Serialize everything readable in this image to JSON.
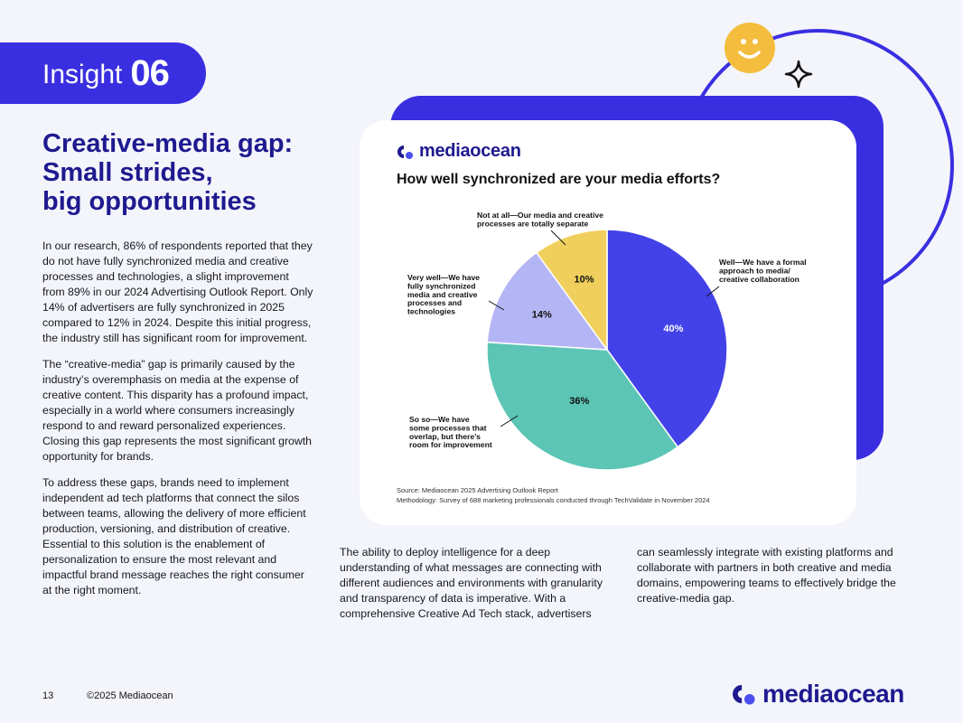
{
  "insight": {
    "label": "Insight",
    "number": "06"
  },
  "headline": [
    "Creative-media gap:",
    "Small strides,",
    "big opportunities"
  ],
  "body": {
    "col1": [
      "In our research, 86% of respondents reported that they do not have fully synchronized media and creative processes and technologies, a slight improvement from 89% in our 2024 Advertising Outlook Report. Only 14% of advertisers are fully synchronized in 2025 compared to 12% in 2024. Despite this initial progress, the industry still has significant room for improvement.",
      "The “creative-media” gap is primarily caused by the industry’s overemphasis on media at the expense of creative content. This disparity has a profound impact, especially in a world where consumers increasingly respond to and reward personalized experiences. Closing this gap represents the most significant growth opportunity for brands.",
      "To address these gaps, brands need to implement independent ad tech platforms that connect the silos between teams, allowing the delivery of more efficient production, versioning, and distribution of creative. Essential to this solution is the enablement of personalization to ensure the most relevant and impactful brand message reaches the right consumer at the right moment."
    ],
    "col2": "The ability to deploy intelligence for a deep understanding of what messages are connecting with different audiences and environments with granularity and transparency of data is imperative. With a comprehensive Creative Ad Tech stack, advertisers",
    "col3": "can seamlessly integrate with existing platforms and collaborate with partners in both creative and media domains, empowering teams to effectively bridge the creative-media gap."
  },
  "card": {
    "brand": "mediaocean",
    "source": "Source: Mediaocean 2025 Advertising Outlook Report",
    "methodology": "Methodology: Survey of 688 marketing professionals conducted through TechValidate in November 2024"
  },
  "chart_data": {
    "type": "pie",
    "title": "How well synchronized are your media efforts?",
    "slices": [
      {
        "label": "Well—We have a formal approach to media/ creative collaboration",
        "value": 40,
        "display": "40%",
        "color": "#4342e8",
        "text_color": "#ffffff"
      },
      {
        "label": "So so—We have some processes that overlap, but there’s room for improvement",
        "value": 36,
        "display": "36%",
        "color": "#5cc5b5",
        "text_color": "#111111"
      },
      {
        "label": "Very well—We have fully synchronized media and creative processes and technologies",
        "value": 14,
        "display": "14%",
        "color": "#b4b5f4",
        "text_color": "#111111"
      },
      {
        "label": "Not at all—Our media and creative processes are totally separate",
        "value": 10,
        "display": "10%",
        "color": "#f0cf5c",
        "text_color": "#111111"
      }
    ]
  },
  "footer": {
    "page": "13",
    "copyright": "©2025 Mediaocean",
    "brand": "mediaocean"
  },
  "colors": {
    "brand": "#3a2fe0",
    "headline": "#1f1a8f",
    "smiley": "#f5bd3d"
  }
}
